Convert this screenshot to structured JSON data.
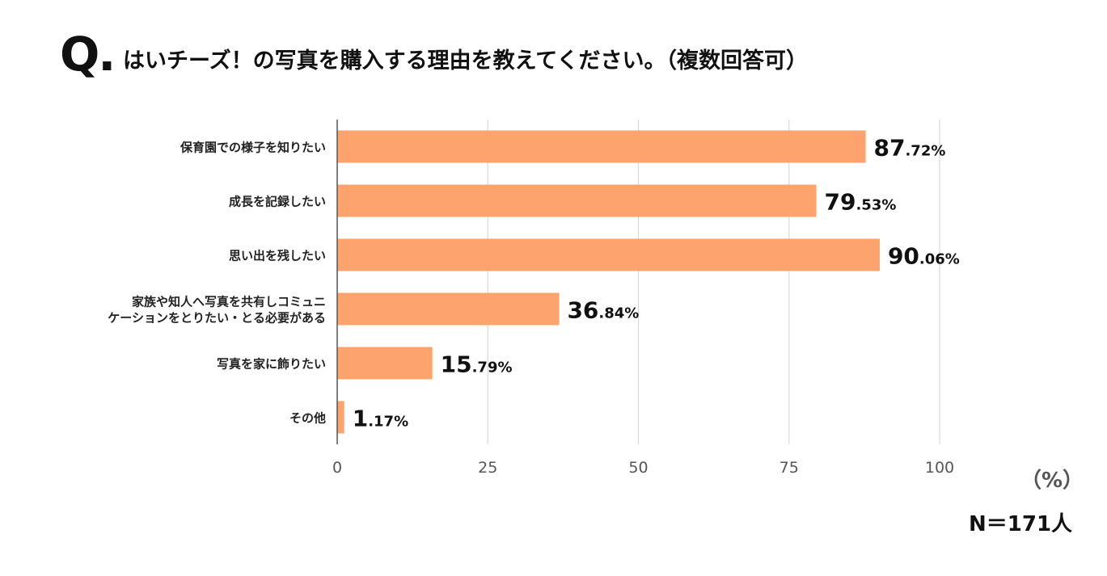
{
  "question": {
    "mark": "Q.",
    "title": "はいチーズ！の写真を購入する理由を教えてください。（複数回答可）"
  },
  "chart_data": {
    "type": "bar",
    "orientation": "horizontal",
    "categories": [
      [
        "保育園での様子を知りたい"
      ],
      [
        "成長を記録したい"
      ],
      [
        "思い出を残したい"
      ],
      [
        "家族や知人へ写真を共有しコミュニ",
        "ケーションをとりたい・とる必要がある"
      ],
      [
        "写真を家に飾りたい"
      ],
      [
        "その他"
      ]
    ],
    "values": [
      87.72,
      79.53,
      90.06,
      36.84,
      15.79,
      1.17
    ],
    "value_labels": [
      {
        "int": "87",
        "dec": ".72%"
      },
      {
        "int": "79",
        "dec": ".53%"
      },
      {
        "int": "90",
        "dec": ".06%"
      },
      {
        "int": "36",
        "dec": ".84%"
      },
      {
        "int": "15",
        "dec": ".79%"
      },
      {
        "int": "1",
        "dec": ".17%"
      }
    ],
    "x_ticks": [
      0,
      25,
      50,
      75,
      100
    ],
    "xlim": [
      0,
      100
    ],
    "grid": true,
    "bar_color": "#FDA46E"
  },
  "unit_label": "（%）",
  "sample_size": "N＝171人"
}
